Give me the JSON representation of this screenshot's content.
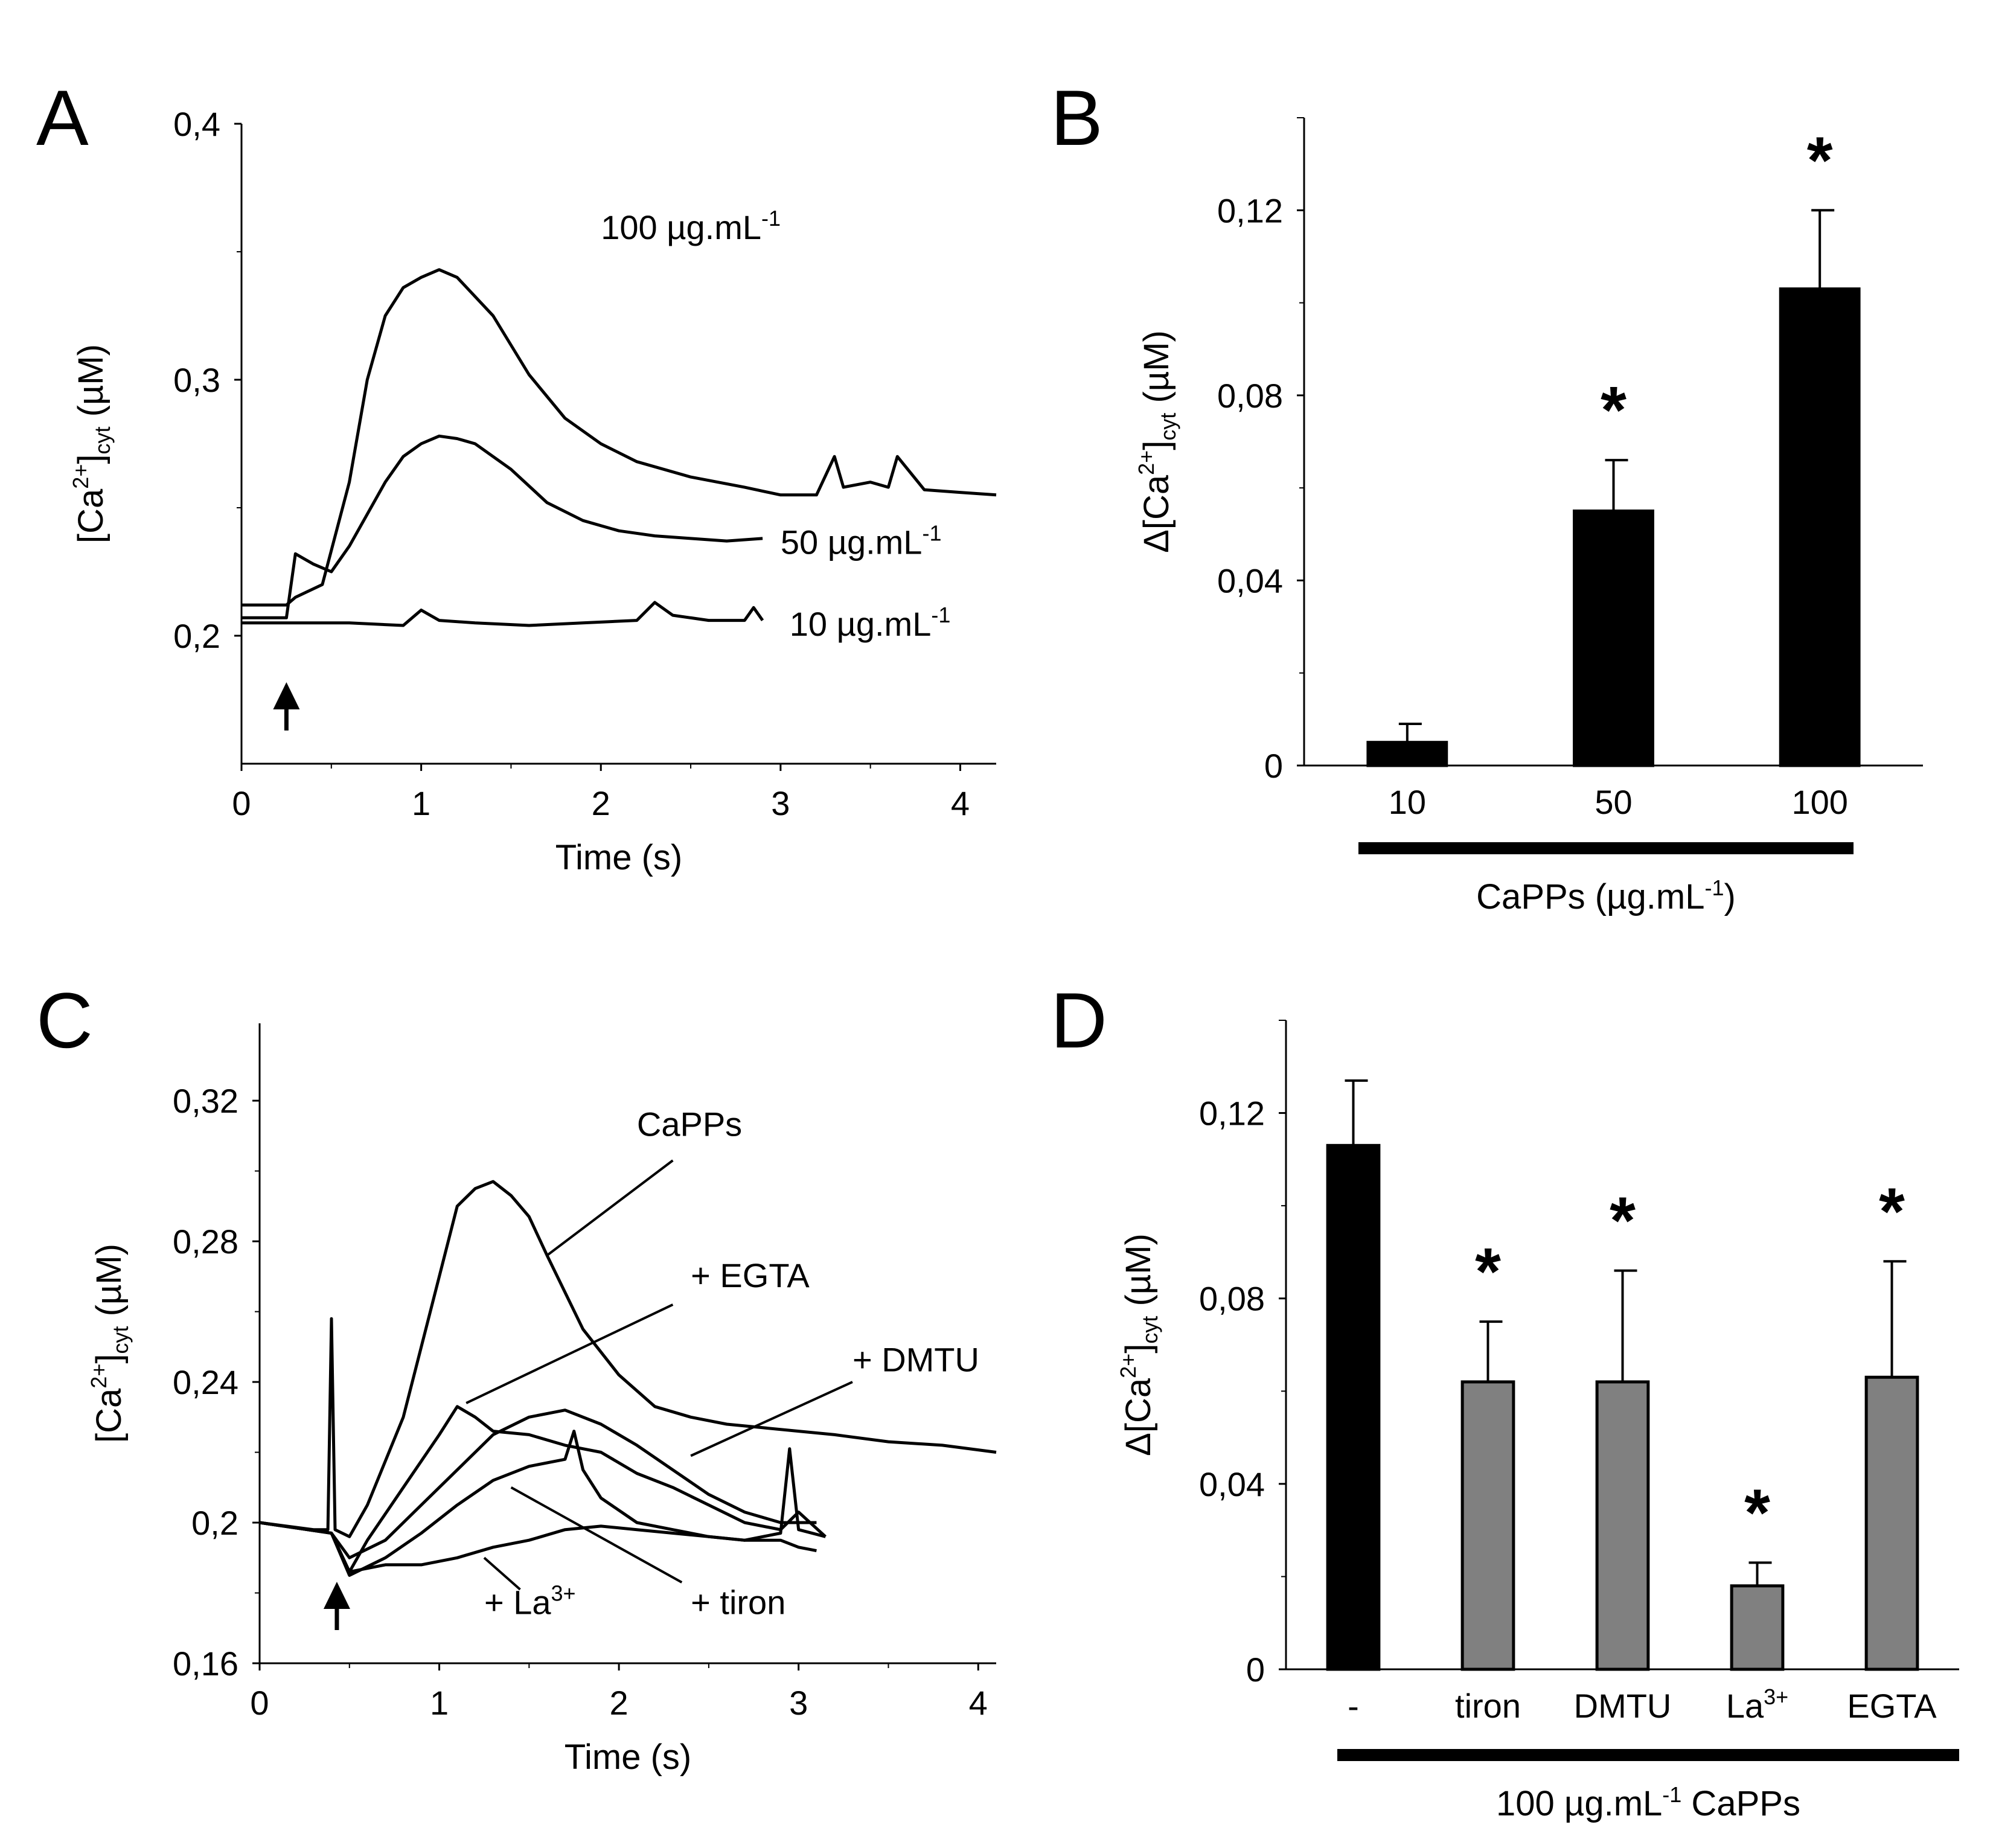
{
  "chart_data": [
    {
      "panel": "A",
      "type": "line",
      "xlabel": "Time (s)",
      "ylabel": {
        "prefix": "[Ca",
        "sup": "2+",
        "mid": "]",
        "sub": "cyt",
        "suffix": " (µM)"
      },
      "xlim": [
        0,
        4.2
      ],
      "ylim": [
        0.15,
        0.4
      ],
      "xticks": [
        0,
        1,
        2,
        3,
        4
      ],
      "xtick_labels": [
        "0",
        "1",
        "2",
        "3",
        "4"
      ],
      "yticks": [
        0.2,
        0.3,
        0.4
      ],
      "ytick_labels": [
        "0,2",
        "0,3",
        "0,4"
      ],
      "stimulus_arrow_time": 0.25,
      "series": [
        {
          "name": "100 µg.mL-1",
          "label": {
            "text": "100 µg.mL",
            "sup": "-1"
          },
          "x": [
            0,
            0.25,
            0.3,
            0.45,
            0.6,
            0.7,
            0.8,
            0.9,
            1.0,
            1.1,
            1.2,
            1.4,
            1.6,
            1.8,
            2.0,
            2.2,
            2.5,
            2.8,
            3.0,
            3.2,
            3.3,
            3.35,
            3.5,
            3.6,
            3.65,
            3.8,
            4.0,
            4.2
          ],
          "y": [
            0.212,
            0.212,
            0.215,
            0.22,
            0.26,
            0.3,
            0.325,
            0.336,
            0.34,
            0.343,
            0.34,
            0.325,
            0.302,
            0.285,
            0.275,
            0.268,
            0.262,
            0.258,
            0.255,
            0.255,
            0.27,
            0.258,
            0.26,
            0.258,
            0.27,
            0.257,
            0.256,
            0.255
          ]
        },
        {
          "name": "50 µg.mL-1",
          "label": {
            "text": "50 µg.mL",
            "sup": "-1"
          },
          "x": [
            0,
            0.25,
            0.3,
            0.4,
            0.5,
            0.6,
            0.8,
            0.9,
            1.0,
            1.1,
            1.2,
            1.3,
            1.5,
            1.7,
            1.9,
            2.1,
            2.3,
            2.5,
            2.7,
            2.9
          ],
          "y": [
            0.207,
            0.207,
            0.232,
            0.228,
            0.225,
            0.235,
            0.26,
            0.27,
            0.275,
            0.278,
            0.277,
            0.275,
            0.265,
            0.252,
            0.245,
            0.241,
            0.239,
            0.238,
            0.237,
            0.238
          ]
        },
        {
          "name": "10 µg.mL-1",
          "label": {
            "text": "10 µg.mL",
            "sup": "-1"
          },
          "x": [
            0,
            0.3,
            0.6,
            0.9,
            1.0,
            1.1,
            1.3,
            1.6,
            1.9,
            2.2,
            2.3,
            2.4,
            2.6,
            2.8,
            2.85,
            2.9
          ],
          "y": [
            0.205,
            0.205,
            0.205,
            0.204,
            0.21,
            0.206,
            0.205,
            0.204,
            0.205,
            0.206,
            0.213,
            0.208,
            0.206,
            0.206,
            0.211,
            0.206
          ]
        }
      ]
    },
    {
      "panel": "B",
      "type": "bar",
      "categories": [
        "10",
        "50",
        "100"
      ],
      "values": [
        0.005,
        0.055,
        0.103
      ],
      "errors": [
        0.004,
        0.011,
        0.017
      ],
      "significance": [
        "",
        "*",
        "*"
      ],
      "bar_color": "#000000",
      "ylabel": {
        "prefix": "Δ[Ca",
        "sup": "2+",
        "mid": "]",
        "sub": "cyt",
        "suffix": " (µM)"
      },
      "ylim": [
        0,
        0.14
      ],
      "yticks": [
        0,
        0.04,
        0.08,
        0.12
      ],
      "ytick_labels": [
        "0",
        "0,04",
        "0,08",
        "0,12"
      ],
      "group_label": {
        "text": "CaPPs (µg.mL",
        "sup": "-1",
        "after": ")"
      }
    },
    {
      "panel": "C",
      "type": "line",
      "xlabel": "Time (s)",
      "ylabel": {
        "prefix": "[Ca",
        "sup": "2+",
        "mid": "]",
        "sub": "cyt",
        "suffix": " (µM)"
      },
      "xlim": [
        0,
        4.1
      ],
      "ylim": [
        0.16,
        0.342
      ],
      "xticks": [
        0,
        1,
        2,
        3,
        4
      ],
      "xtick_labels": [
        "0",
        "1",
        "2",
        "3",
        "4"
      ],
      "yticks": [
        0.16,
        0.2,
        0.24,
        0.28,
        0.32
      ],
      "ytick_labels": [
        "0,16",
        "0,2",
        "0,24",
        "0,28",
        "0,32"
      ],
      "stimulus_arrow_time": 0.43,
      "series": [
        {
          "name": "CaPPs",
          "label": "CaPPs",
          "x": [
            0,
            0.3,
            0.38,
            0.4,
            0.42,
            0.5,
            0.6,
            0.8,
            1.0,
            1.1,
            1.2,
            1.3,
            1.4,
            1.5,
            1.6,
            1.8,
            2.0,
            2.2,
            2.4,
            2.6,
            2.8,
            3.0,
            3.2,
            3.5,
            3.8,
            4.1
          ],
          "y": [
            0.2,
            0.198,
            0.198,
            0.258,
            0.198,
            0.196,
            0.205,
            0.23,
            0.27,
            0.29,
            0.295,
            0.297,
            0.293,
            0.287,
            0.276,
            0.255,
            0.242,
            0.233,
            0.23,
            0.228,
            0.227,
            0.226,
            0.225,
            0.223,
            0.222,
            0.22
          ]
        },
        {
          "name": "+ EGTA",
          "label": "+ EGTA",
          "x": [
            0,
            0.4,
            0.5,
            0.6,
            0.8,
            1.0,
            1.1,
            1.2,
            1.3,
            1.5,
            1.7,
            1.9,
            2.1,
            2.3,
            2.5,
            2.7,
            2.9,
            3.0,
            3.15
          ],
          "y": [
            0.2,
            0.197,
            0.186,
            0.195,
            0.21,
            0.225,
            0.233,
            0.23,
            0.226,
            0.225,
            0.222,
            0.22,
            0.214,
            0.21,
            0.205,
            0.2,
            0.198,
            0.203,
            0.196
          ]
        },
        {
          "name": "+ DMTU",
          "label": "+ DMTU",
          "x": [
            0,
            0.4,
            0.5,
            0.7,
            0.9,
            1.1,
            1.3,
            1.5,
            1.7,
            1.9,
            2.1,
            2.3,
            2.5,
            2.7,
            2.9,
            3.1
          ],
          "y": [
            0.2,
            0.197,
            0.19,
            0.195,
            0.205,
            0.215,
            0.225,
            0.23,
            0.232,
            0.228,
            0.222,
            0.215,
            0.208,
            0.203,
            0.2,
            0.2
          ]
        },
        {
          "name": "+ tiron",
          "label": "+ tiron",
          "x": [
            0,
            0.4,
            0.5,
            0.7,
            0.9,
            1.1,
            1.3,
            1.5,
            1.7,
            1.75,
            1.8,
            1.9,
            2.1,
            2.3,
            2.5,
            2.7,
            2.9,
            3.0,
            3.1
          ],
          "y": [
            0.2,
            0.197,
            0.185,
            0.19,
            0.197,
            0.205,
            0.212,
            0.216,
            0.218,
            0.226,
            0.215,
            0.207,
            0.2,
            0.198,
            0.196,
            0.195,
            0.195,
            0.193,
            0.192
          ]
        },
        {
          "name": "+ La3+",
          "label": {
            "text": "+ La",
            "sup": "3+"
          },
          "x": [
            0,
            0.4,
            0.5,
            0.7,
            0.9,
            1.1,
            1.3,
            1.5,
            1.7,
            1.9,
            2.1,
            2.3,
            2.5,
            2.7,
            2.9,
            2.95,
            3.0,
            3.15
          ],
          "y": [
            0.2,
            0.197,
            0.186,
            0.188,
            0.188,
            0.19,
            0.193,
            0.195,
            0.198,
            0.199,
            0.198,
            0.197,
            0.196,
            0.195,
            0.197,
            0.221,
            0.198,
            0.196
          ]
        }
      ]
    },
    {
      "panel": "D",
      "type": "bar",
      "categories": [
        "-",
        "tiron",
        "DMTU",
        "La3+",
        "EGTA"
      ],
      "category_labels": [
        {
          "text": "-"
        },
        {
          "text": "tiron"
        },
        {
          "text": "DMTU"
        },
        {
          "text": "La",
          "sup": "3+"
        },
        {
          "text": "EGTA"
        }
      ],
      "values": [
        0.113,
        0.062,
        0.062,
        0.018,
        0.063
      ],
      "errors": [
        0.014,
        0.013,
        0.024,
        0.005,
        0.025
      ],
      "significance": [
        "",
        "*",
        "*",
        "*",
        "*"
      ],
      "bar_colors": [
        "#000000",
        "#808080",
        "#808080",
        "#808080",
        "#808080"
      ],
      "ylabel": {
        "prefix": "Δ[Ca",
        "sup": "2+",
        "mid": "]",
        "sub": "cyt",
        "suffix": " (µM)"
      },
      "ylim": [
        0,
        0.14
      ],
      "yticks": [
        0,
        0.04,
        0.08,
        0.12
      ],
      "ytick_labels": [
        "0",
        "0,04",
        "0,08",
        "0,12"
      ],
      "group_label": {
        "pre": "100 µg.mL",
        "sup": "-1",
        "after": " CaPPs"
      }
    }
  ],
  "panel_letters": [
    "A",
    "B",
    "C",
    "D"
  ]
}
